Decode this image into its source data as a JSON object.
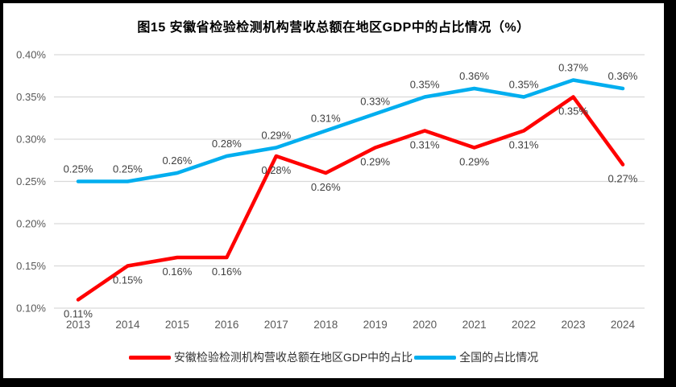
{
  "figure": {
    "title": "图15 安徽省检验检测机构营收总额在地区GDP中的占比情况（%）"
  },
  "chart_data": {
    "type": "line",
    "title": "图15 安徽省检验检测机构营收总额在地区GDP中的占比情况（%）",
    "categories": [
      "2013",
      "2014",
      "2015",
      "2016",
      "2017",
      "2018",
      "2019",
      "2020",
      "2021",
      "2022",
      "2023",
      "2024"
    ],
    "series": [
      {
        "name": "安徽检验检测机构营收总额在地区GDP中的占比",
        "color": "#FF0000",
        "values": [
          0.11,
          0.15,
          0.16,
          0.16,
          0.28,
          0.26,
          0.29,
          0.31,
          0.29,
          0.31,
          0.35,
          0.27
        ],
        "labels": [
          "0.11%",
          "0.15%",
          "0.16%",
          "0.16%",
          "0.28%",
          "0.26%",
          "0.29%",
          "0.31%",
          "0.29%",
          "0.31%",
          "0.35%",
          "0.27%"
        ],
        "label_position": "below"
      },
      {
        "name": "全国的占比情况",
        "color": "#00AEEF",
        "values": [
          0.25,
          0.25,
          0.26,
          0.28,
          0.29,
          0.31,
          0.33,
          0.35,
          0.36,
          0.35,
          0.37,
          0.36
        ],
        "labels": [
          "0.25%",
          "0.25%",
          "0.26%",
          "0.28%",
          "0.29%",
          "0.31%",
          "0.33%",
          "0.35%",
          "0.36%",
          "0.35%",
          "0.37%",
          "0.36%"
        ],
        "label_position": "above"
      }
    ],
    "ylim": [
      0.1,
      0.4
    ],
    "ytick_step": 0.05,
    "ytick_labels": [
      "0.10%",
      "0.15%",
      "0.20%",
      "0.25%",
      "0.30%",
      "0.35%",
      "0.40%"
    ],
    "xlabel": "",
    "ylabel": "",
    "grid": true,
    "legend_position": "bottom"
  },
  "colors": {
    "series_anhui": "#FF0000",
    "series_national": "#00AEEF",
    "gridline": "#D9D9D9",
    "axis_text": "#595959",
    "data_label_text": "#404040",
    "frame": "#000000"
  }
}
